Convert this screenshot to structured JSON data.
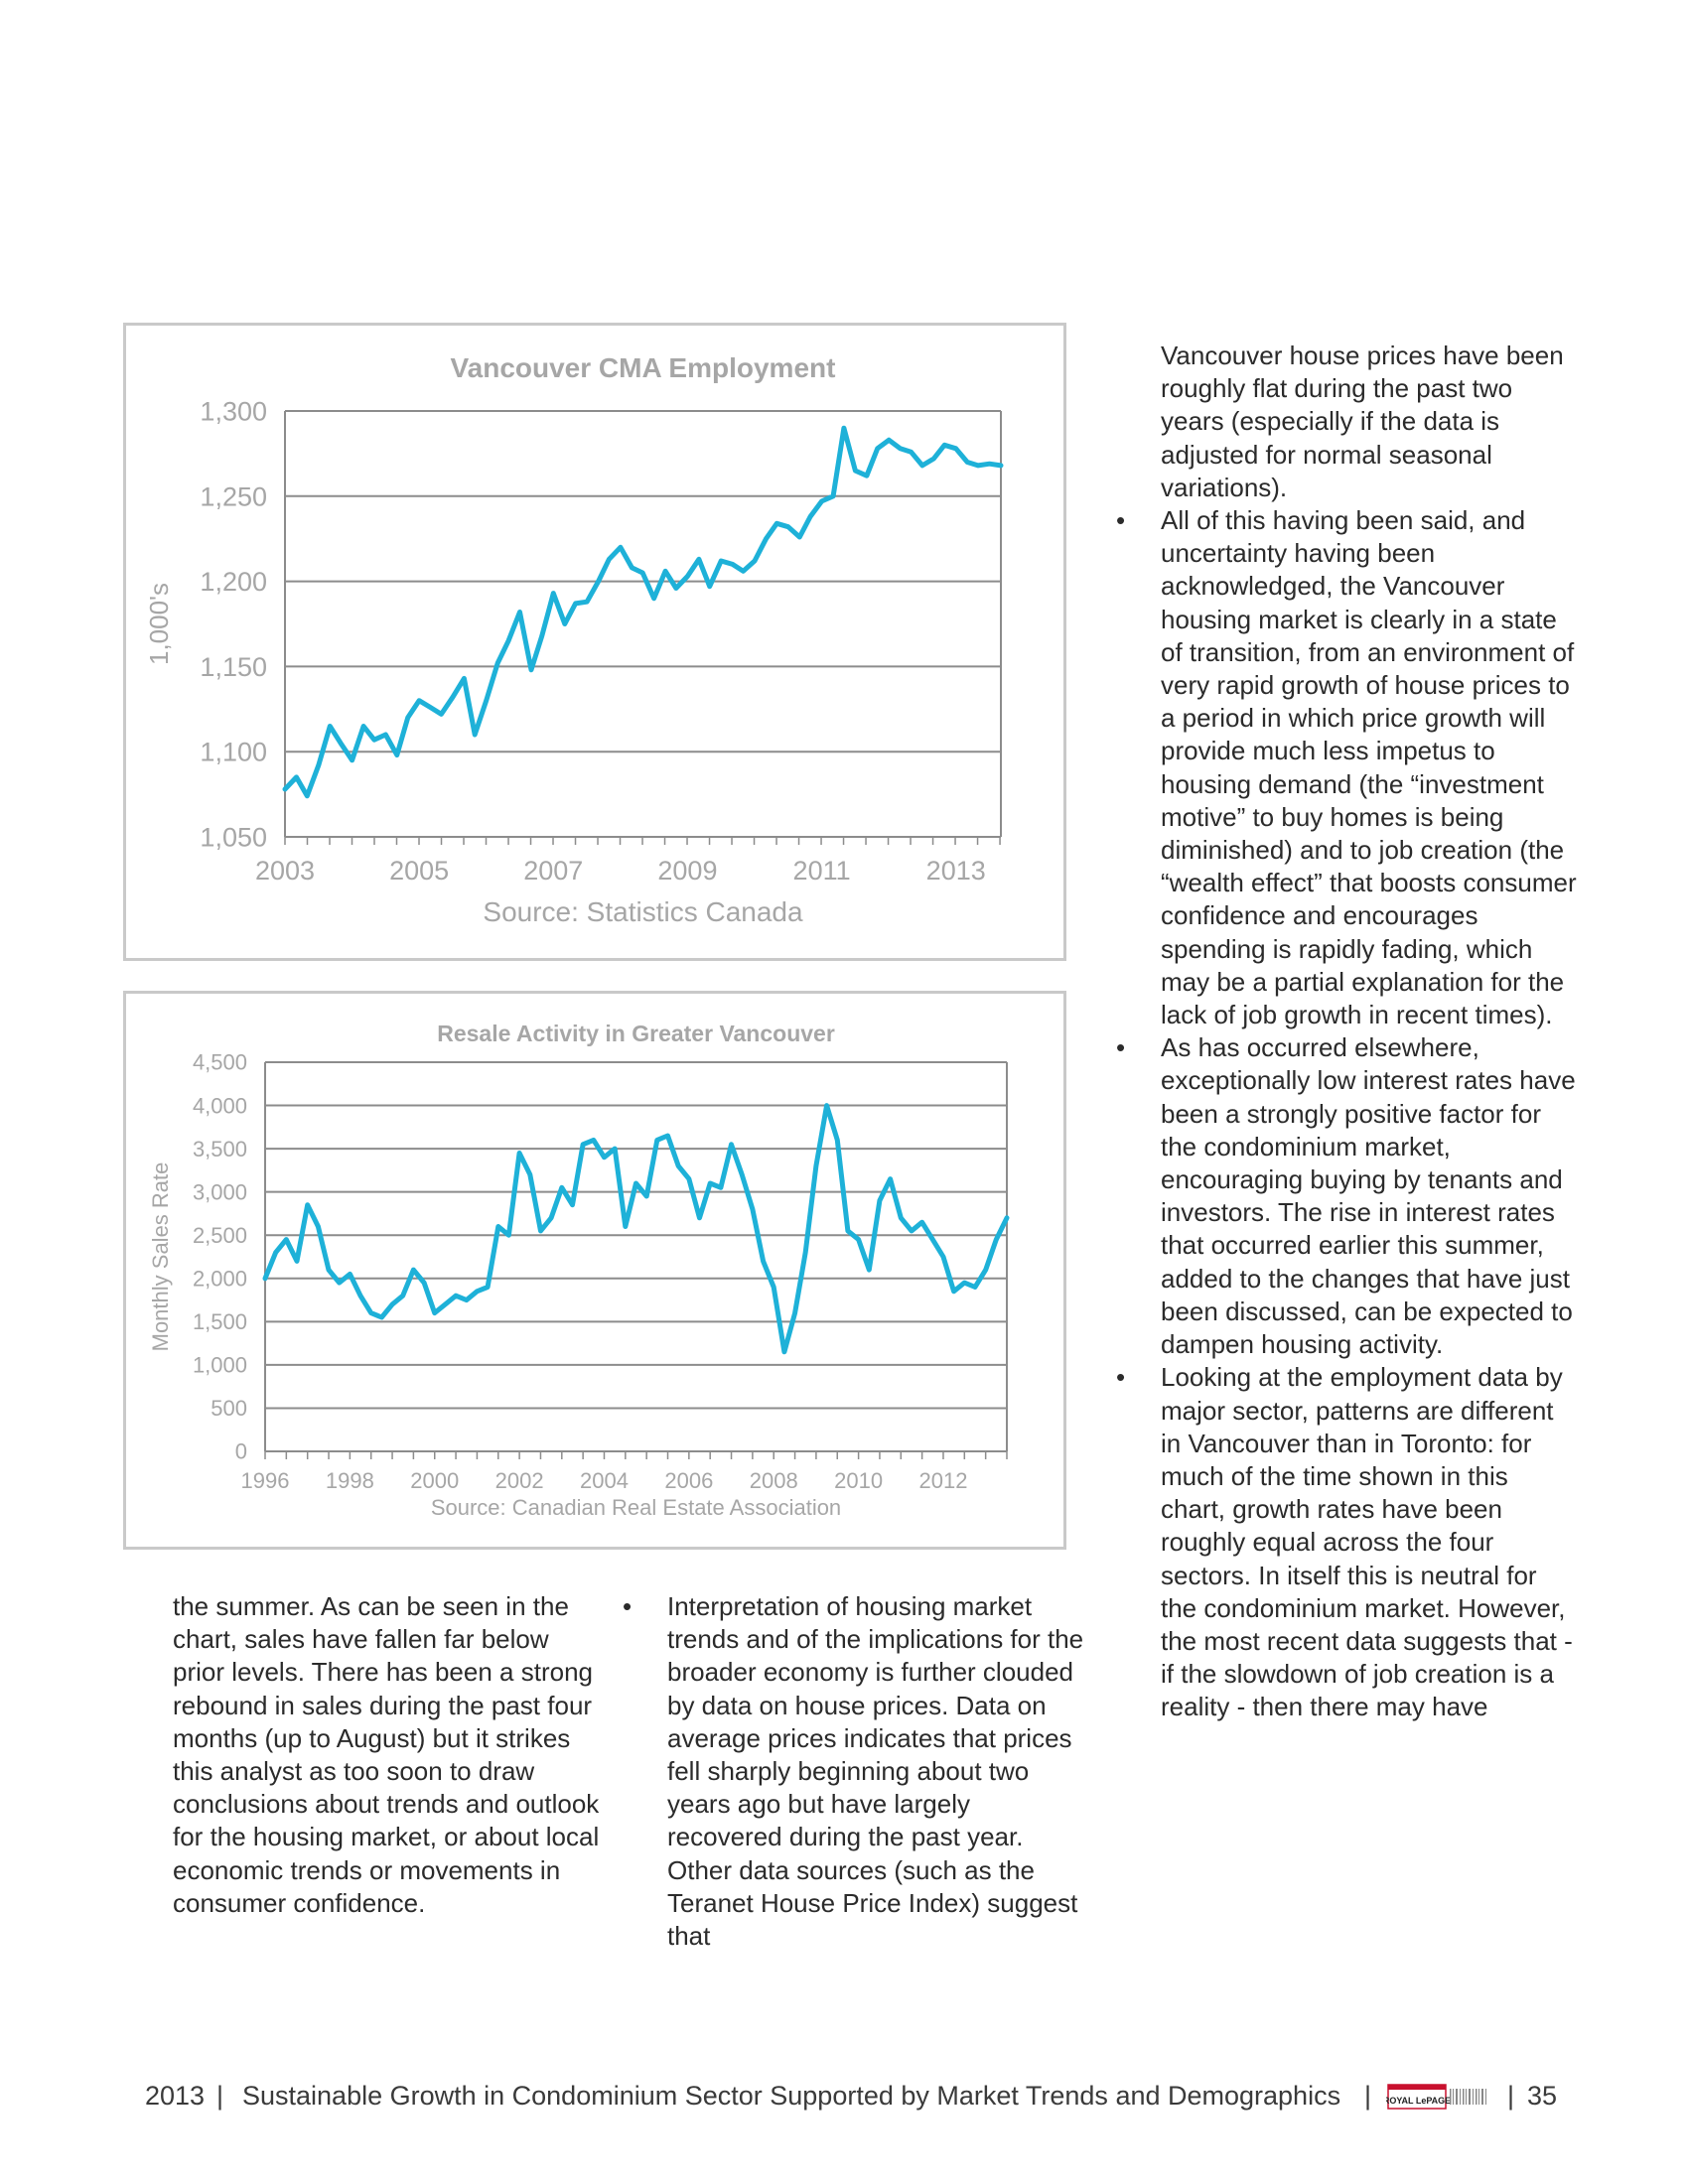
{
  "chart_data": [
    {
      "type": "line",
      "title": "Vancouver CMA Employment",
      "ylabel": "1,000's",
      "source": "Source:  Statistics Canada",
      "ylim": [
        1050,
        1300
      ],
      "yticks": [
        "1,050",
        "1,100",
        "1,150",
        "1,200",
        "1,250",
        "1,300"
      ],
      "xticks": [
        "2003",
        "2005",
        "2007",
        "2009",
        "2011",
        "2013"
      ],
      "color": "#1eb1d8",
      "series": [
        {
          "x": [
            2003.0,
            2003.17,
            2003.33,
            2003.5,
            2003.67,
            2003.83,
            2004.0,
            2004.17,
            2004.33,
            2004.5,
            2004.67,
            2004.83,
            2005.0,
            2005.17,
            2005.33,
            2005.5,
            2005.67,
            2005.83,
            2006.0,
            2006.17,
            2006.33,
            2006.5,
            2006.67,
            2006.83,
            2007.0,
            2007.17,
            2007.33,
            2007.5,
            2007.67,
            2007.83,
            2008.0,
            2008.17,
            2008.33,
            2008.5,
            2008.67,
            2008.83,
            2009.0,
            2009.17,
            2009.33,
            2009.5,
            2009.67,
            2009.83,
            2010.0,
            2010.17,
            2010.33,
            2010.5,
            2010.67,
            2010.83,
            2011.0,
            2011.17,
            2011.33,
            2011.5,
            2011.67,
            2011.83,
            2012.0,
            2012.17,
            2012.33,
            2012.5,
            2012.67,
            2012.83,
            2013.0,
            2013.17,
            2013.33,
            2013.5,
            2013.67
          ],
          "values": [
            1078,
            1085,
            1074,
            1092,
            1115,
            1105,
            1095,
            1115,
            1107,
            1110,
            1098,
            1120,
            1130,
            1126,
            1122,
            1132,
            1143,
            1110,
            1130,
            1152,
            1165,
            1182,
            1148,
            1168,
            1193,
            1175,
            1187,
            1188,
            1200,
            1213,
            1220,
            1208,
            1205,
            1190,
            1206,
            1196,
            1203,
            1213,
            1197,
            1212,
            1210,
            1206,
            1212,
            1225,
            1234,
            1232,
            1226,
            1238,
            1247,
            1250,
            1290,
            1265,
            1262,
            1278,
            1283,
            1278,
            1276,
            1268,
            1272,
            1280,
            1278,
            1270,
            1268,
            1269,
            1268
          ]
        }
      ]
    },
    {
      "type": "line",
      "title": "Resale Activity in Greater Vancouver",
      "ylabel": "Monthly Sales Rate",
      "source": "Source: Canadian Real Estate Association",
      "ylim": [
        0,
        4500
      ],
      "yticks": [
        "0",
        "500",
        "1,000",
        "1,500",
        "2,000",
        "2,500",
        "3,000",
        "3,500",
        "4,000",
        "4,500"
      ],
      "xticks": [
        "1996",
        "1998",
        "2000",
        "2002",
        "2004",
        "2006",
        "2008",
        "2010",
        "2012"
      ],
      "color": "#1eb1d8",
      "series": [
        {
          "x": [
            1996.0,
            1996.25,
            1996.5,
            1996.75,
            1997.0,
            1997.25,
            1997.5,
            1997.75,
            1998.0,
            1998.25,
            1998.5,
            1998.75,
            1999.0,
            1999.25,
            1999.5,
            1999.75,
            2000.0,
            2000.25,
            2000.5,
            2000.75,
            2001.0,
            2001.25,
            2001.5,
            2001.75,
            2002.0,
            2002.25,
            2002.5,
            2002.75,
            2003.0,
            2003.25,
            2003.5,
            2003.75,
            2004.0,
            2004.25,
            2004.5,
            2004.75,
            2005.0,
            2005.25,
            2005.5,
            2005.75,
            2006.0,
            2006.25,
            2006.5,
            2006.75,
            2007.0,
            2007.25,
            2007.5,
            2007.75,
            2008.0,
            2008.25,
            2008.5,
            2008.75,
            2009.0,
            2009.25,
            2009.5,
            2009.75,
            2010.0,
            2010.25,
            2010.5,
            2010.75,
            2011.0,
            2011.25,
            2011.5,
            2011.75,
            2012.0,
            2012.25,
            2012.5,
            2012.75,
            2013.0,
            2013.25,
            2013.5
          ],
          "values": [
            2000,
            2300,
            2450,
            2200,
            2850,
            2600,
            2100,
            1950,
            2050,
            1800,
            1600,
            1550,
            1700,
            1800,
            2100,
            1950,
            1600,
            1700,
            1800,
            1750,
            1850,
            1900,
            2600,
            2500,
            3450,
            3200,
            2550,
            2700,
            3050,
            2850,
            3550,
            3600,
            3400,
            3500,
            2600,
            3100,
            2950,
            3600,
            3650,
            3300,
            3150,
            2700,
            3100,
            3050,
            3550,
            3200,
            2800,
            2200,
            1900,
            1150,
            1600,
            2300,
            3300,
            4000,
            3600,
            2550,
            2450,
            2100,
            2900,
            3150,
            2700,
            2550,
            2650,
            2450,
            2250,
            1850,
            1950,
            1900,
            2100,
            2450,
            2700
          ]
        }
      ]
    }
  ],
  "left_column": {
    "text": "the summer. As can be seen in the chart, sales have fallen far below prior levels. There has been a strong rebound in sales during the past four months (up to August) but it strikes this analyst as too soon to draw conclusions about trends and outlook for the housing market, or about local economic trends or movements in consumer confidence."
  },
  "middle_column": {
    "bullet": "Interpretation of housing market trends and of the implications for the broader economy is further clouded by data on house prices. Data on average prices indicates that prices fell sharply beginning about two years ago but have largely recovered during the past year. Other data sources (such as the Teranet House Price Index) suggest that"
  },
  "right_column": {
    "intro": "Vancouver house prices have been roughly flat during the past two years (especially if the data is adjusted for normal seasonal variations).",
    "bullets": [
      "All of this having been said, and uncertainty having been acknowledged, the Vancouver housing market is clearly in a state of transition, from an environment of very rapid growth of house prices to a period in which price growth will provide much less impetus to housing demand (the “investment motive” to buy homes is being diminished) and to job creation (the “wealth effect” that boosts consumer confidence and encourages spending is rapidly fading, which may be a partial explanation for the lack of job growth in recent times).",
      "As has occurred elsewhere, exceptionally low interest rates have been a strongly positive factor for the condominium market, encouraging buying by tenants and investors. The rise in interest rates that occurred earlier this summer, added to the changes that have just been discussed, can be expected to dampen housing activity.",
      "Looking at the employment data by major sector, patterns are  different in Vancouver than in Toronto: for much of the time shown in this chart, growth rates have been roughly equal across the four sectors. In itself this is neutral for the condominium market.  However, the most recent data suggests that - if the slowdown of job creation is a reality - then there may have"
    ]
  },
  "footer": {
    "year": "2013",
    "separator": "|",
    "title": "Sustainable Growth in Condominium Sector Supported by Market Trends and Demographics",
    "logo_text": "ROYAL LePAGE",
    "page_number": "35"
  }
}
